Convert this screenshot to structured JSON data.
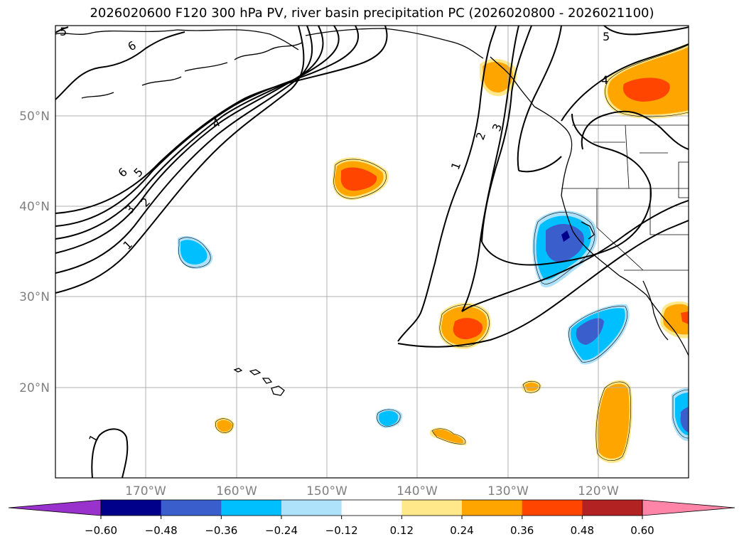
{
  "title": "2026020600 F120 300 hPa PV, river basin precipitation PC (2026020800 - 2026021100)",
  "map": {
    "lat_labels": [
      "50°N",
      "40°N",
      "30°N",
      "20°N"
    ],
    "lon_labels": [
      "170°W",
      "160°W",
      "150°W",
      "140°W",
      "130°W",
      "120°W"
    ],
    "lon_range": [
      -180,
      -110
    ],
    "lat_range": [
      10,
      60
    ],
    "contour_levels": [
      "1",
      "2",
      "3",
      "4",
      "5",
      "6"
    ],
    "contour_labels": {
      "c1": "1",
      "c2": "2",
      "c3": "3",
      "c4": "4",
      "c5": "5",
      "c6": "6",
      "c1e": "1",
      "c2e": "2",
      "c3e": "3",
      "c5e": "5",
      "c4e": "4",
      "c5t": "5",
      "c1s": "1"
    }
  },
  "colorbar": {
    "ticks": [
      "−0.60",
      "−0.48",
      "−0.36",
      "−0.24",
      "−0.12",
      "0.12",
      "0.24",
      "0.36",
      "0.48",
      "0.60"
    ],
    "colors": [
      "#9932cc",
      "#00008b",
      "#3a5fcd",
      "#00bfff",
      "#aee1fa",
      "#ffffff",
      "#ffe88a",
      "#ffa500",
      "#ff4500",
      "#b22222",
      "#ff85a8"
    ]
  }
}
